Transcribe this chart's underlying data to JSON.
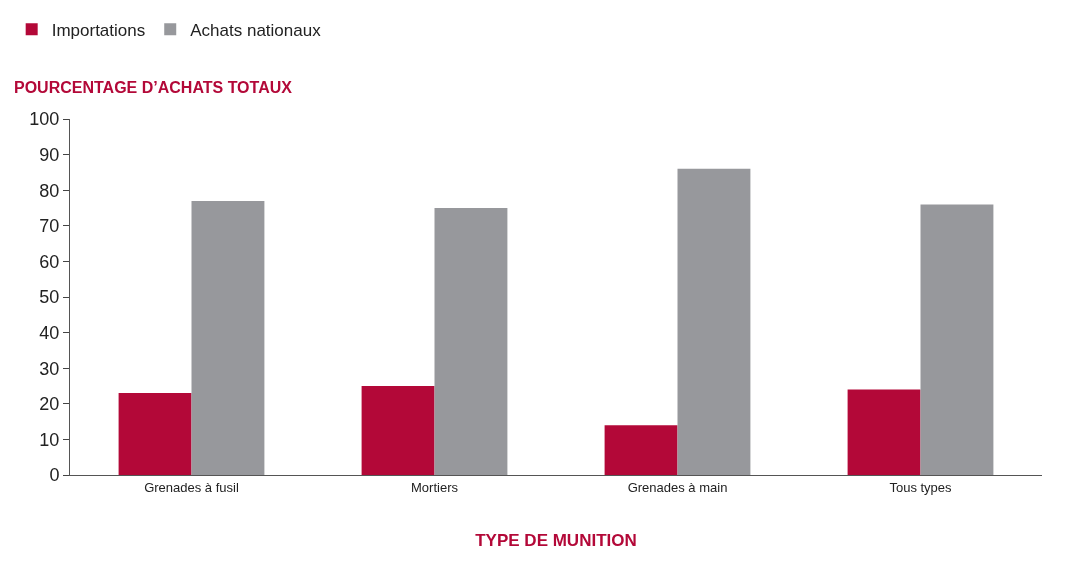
{
  "chart_data": {
    "type": "bar",
    "ylabel": "POURCENTAGE D’ACHATS TOTAUX",
    "xlabel": "TYPE DE MUNITION",
    "categories": [
      "Grenades à fusil",
      "Mortiers",
      "Grenades à main",
      "Tous types"
    ],
    "series": [
      {
        "name": "Importations",
        "color": "#b30838",
        "values": [
          23,
          25,
          14,
          24
        ]
      },
      {
        "name": "Achats nationaux",
        "color": "#97989c",
        "values": [
          77,
          75,
          86,
          76
        ]
      }
    ],
    "ylim": [
      0,
      100
    ],
    "yticks": [
      0,
      10,
      20,
      30,
      40,
      50,
      60,
      70,
      80,
      90,
      100
    ],
    "grid": false,
    "legend": "top left"
  }
}
